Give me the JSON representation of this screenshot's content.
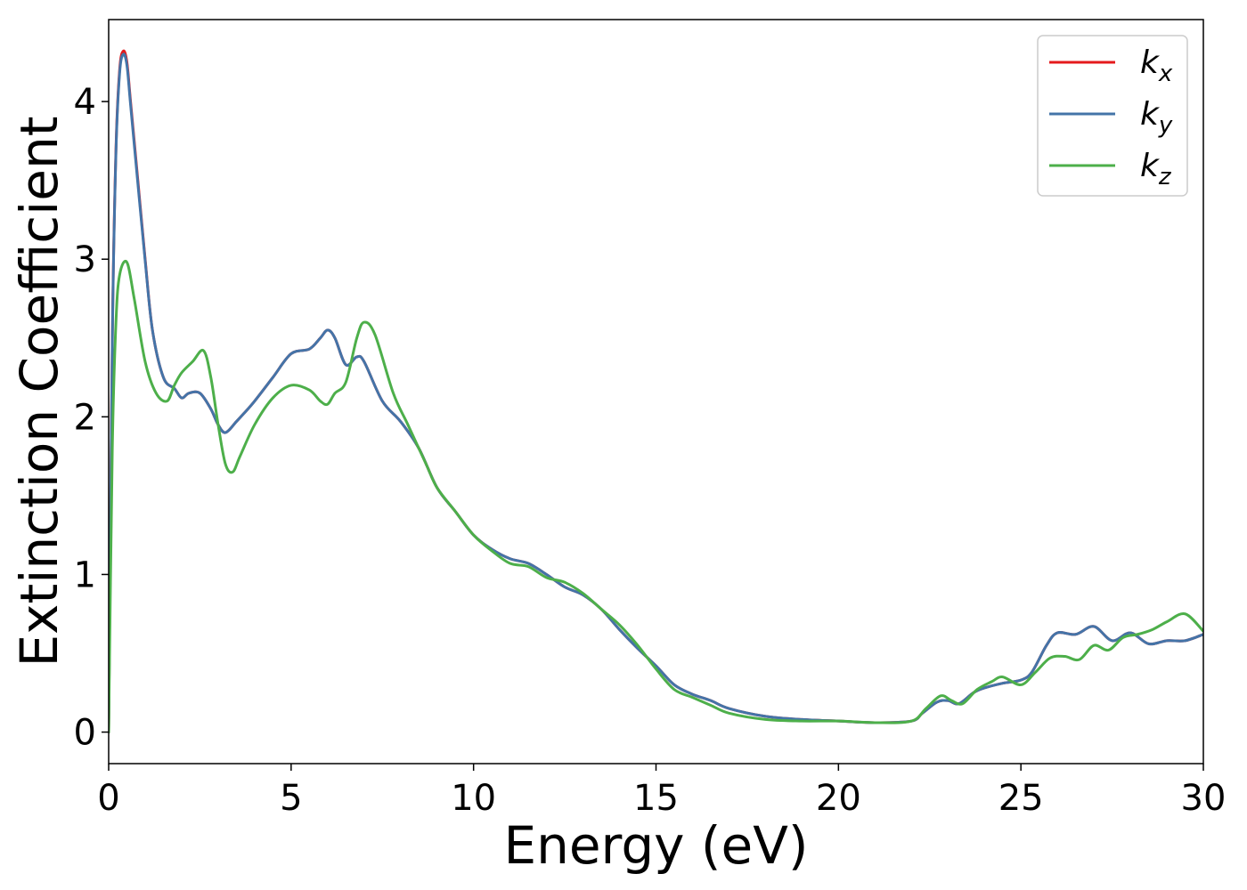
{
  "chart_data": {
    "type": "line",
    "xlabel": "Energy (eV)",
    "ylabel": "Extinction Coefficient",
    "xlim": [
      0,
      30
    ],
    "ylim": [
      -0.2,
      4.52
    ],
    "xticks": [
      0,
      5,
      10,
      15,
      20,
      25,
      30
    ],
    "xtick_labels": [
      "0",
      "5",
      "10",
      "15",
      "20",
      "25",
      "30"
    ],
    "yticks": [
      0,
      1,
      2,
      3,
      4
    ],
    "ytick_labels": [
      "0",
      "1",
      "2",
      "3",
      "4"
    ],
    "grid": false,
    "legend": "top-right",
    "series": [
      {
        "name": "k",
        "subscript": "x",
        "color": "#e41a1c",
        "x": [
          0,
          0.1,
          0.2,
          0.3,
          0.4,
          0.5,
          0.6,
          0.8,
          1.0,
          1.2,
          1.5,
          1.8,
          2.0,
          2.2,
          2.5,
          2.8,
          3.0,
          3.2,
          3.5,
          3.7,
          4.0,
          4.5,
          5.0,
          5.5,
          5.8,
          6.0,
          6.2,
          6.5,
          6.8,
          7.0,
          7.5,
          8.0,
          8.5,
          9.0,
          9.5,
          10.0,
          10.5,
          11.0,
          11.5,
          12.0,
          12.5,
          13.0,
          13.5,
          14.0,
          14.5,
          15.0,
          15.5,
          16.0,
          16.5,
          17.0,
          18.0,
          19.0,
          20.0,
          21.0,
          22.0,
          22.3,
          22.7,
          23.0,
          23.3,
          23.7,
          24.0,
          24.5,
          25.0,
          25.3,
          25.7,
          26.0,
          26.5,
          27.0,
          27.5,
          28.0,
          28.5,
          29.0,
          29.5,
          30.0
        ],
        "values": [
          0.0,
          2.5,
          3.7,
          4.2,
          4.32,
          4.25,
          4.0,
          3.5,
          3.0,
          2.55,
          2.25,
          2.18,
          2.12,
          2.15,
          2.15,
          2.05,
          1.95,
          1.9,
          1.97,
          2.02,
          2.1,
          2.25,
          2.4,
          2.43,
          2.5,
          2.55,
          2.5,
          2.33,
          2.38,
          2.35,
          2.1,
          1.97,
          1.8,
          1.55,
          1.4,
          1.25,
          1.16,
          1.1,
          1.07,
          1.0,
          0.92,
          0.87,
          0.78,
          0.65,
          0.53,
          0.42,
          0.3,
          0.24,
          0.2,
          0.15,
          0.1,
          0.08,
          0.07,
          0.06,
          0.07,
          0.12,
          0.19,
          0.2,
          0.18,
          0.25,
          0.28,
          0.31,
          0.33,
          0.38,
          0.55,
          0.63,
          0.62,
          0.67,
          0.58,
          0.63,
          0.56,
          0.58,
          0.58,
          0.62
        ]
      },
      {
        "name": "k",
        "subscript": "y",
        "color": "#4474a8",
        "x": [
          0,
          0.1,
          0.2,
          0.3,
          0.4,
          0.5,
          0.6,
          0.8,
          1.0,
          1.2,
          1.5,
          1.8,
          2.0,
          2.2,
          2.5,
          2.8,
          3.0,
          3.2,
          3.5,
          3.7,
          4.0,
          4.5,
          5.0,
          5.5,
          5.8,
          6.0,
          6.2,
          6.5,
          6.8,
          7.0,
          7.5,
          8.0,
          8.5,
          9.0,
          9.5,
          10.0,
          10.5,
          11.0,
          11.5,
          12.0,
          12.5,
          13.0,
          13.5,
          14.0,
          14.5,
          15.0,
          15.5,
          16.0,
          16.5,
          17.0,
          18.0,
          19.0,
          20.0,
          21.0,
          22.0,
          22.3,
          22.7,
          23.0,
          23.3,
          23.7,
          24.0,
          24.5,
          25.0,
          25.3,
          25.7,
          26.0,
          26.5,
          27.0,
          27.5,
          28.0,
          28.5,
          29.0,
          29.5,
          30.0
        ],
        "values": [
          0.0,
          2.48,
          3.68,
          4.18,
          4.3,
          4.23,
          3.98,
          3.48,
          2.99,
          2.55,
          2.25,
          2.18,
          2.12,
          2.15,
          2.15,
          2.05,
          1.95,
          1.9,
          1.97,
          2.02,
          2.1,
          2.25,
          2.4,
          2.43,
          2.5,
          2.55,
          2.5,
          2.33,
          2.38,
          2.35,
          2.1,
          1.97,
          1.8,
          1.55,
          1.4,
          1.25,
          1.16,
          1.1,
          1.07,
          1.0,
          0.92,
          0.87,
          0.78,
          0.65,
          0.53,
          0.42,
          0.3,
          0.24,
          0.2,
          0.15,
          0.1,
          0.08,
          0.07,
          0.06,
          0.07,
          0.12,
          0.19,
          0.2,
          0.18,
          0.25,
          0.28,
          0.31,
          0.33,
          0.38,
          0.55,
          0.63,
          0.62,
          0.67,
          0.58,
          0.63,
          0.56,
          0.58,
          0.58,
          0.62
        ]
      },
      {
        "name": "k",
        "subscript": "z",
        "color": "#4daf4a",
        "x": [
          0,
          0.1,
          0.2,
          0.3,
          0.5,
          0.7,
          1.0,
          1.3,
          1.6,
          1.8,
          2.0,
          2.3,
          2.6,
          2.8,
          3.0,
          3.2,
          3.4,
          3.6,
          4.0,
          4.5,
          5.0,
          5.5,
          5.8,
          6.0,
          6.2,
          6.5,
          6.8,
          7.0,
          7.3,
          7.8,
          8.2,
          8.7,
          9.0,
          9.5,
          10.0,
          10.5,
          11.0,
          11.5,
          12.0,
          12.5,
          13.0,
          13.5,
          14.0,
          14.5,
          15.0,
          15.5,
          16.0,
          16.5,
          17.0,
          18.0,
          19.0,
          20.0,
          21.0,
          22.0,
          22.4,
          22.8,
          23.1,
          23.4,
          23.8,
          24.2,
          24.5,
          25.0,
          25.4,
          25.8,
          26.2,
          26.6,
          27.0,
          27.4,
          27.8,
          28.2,
          28.6,
          29.0,
          29.5,
          30.0
        ],
        "values": [
          0.0,
          1.8,
          2.6,
          2.9,
          2.98,
          2.75,
          2.35,
          2.15,
          2.1,
          2.2,
          2.28,
          2.35,
          2.42,
          2.25,
          1.95,
          1.7,
          1.65,
          1.75,
          1.95,
          2.12,
          2.2,
          2.17,
          2.1,
          2.08,
          2.15,
          2.22,
          2.5,
          2.6,
          2.52,
          2.15,
          1.95,
          1.7,
          1.55,
          1.4,
          1.25,
          1.15,
          1.07,
          1.05,
          0.98,
          0.95,
          0.88,
          0.78,
          0.68,
          0.55,
          0.4,
          0.27,
          0.22,
          0.17,
          0.12,
          0.08,
          0.07,
          0.07,
          0.06,
          0.07,
          0.15,
          0.23,
          0.2,
          0.18,
          0.27,
          0.32,
          0.35,
          0.3,
          0.38,
          0.47,
          0.48,
          0.46,
          0.55,
          0.52,
          0.6,
          0.62,
          0.65,
          0.7,
          0.75,
          0.64
        ]
      }
    ]
  }
}
